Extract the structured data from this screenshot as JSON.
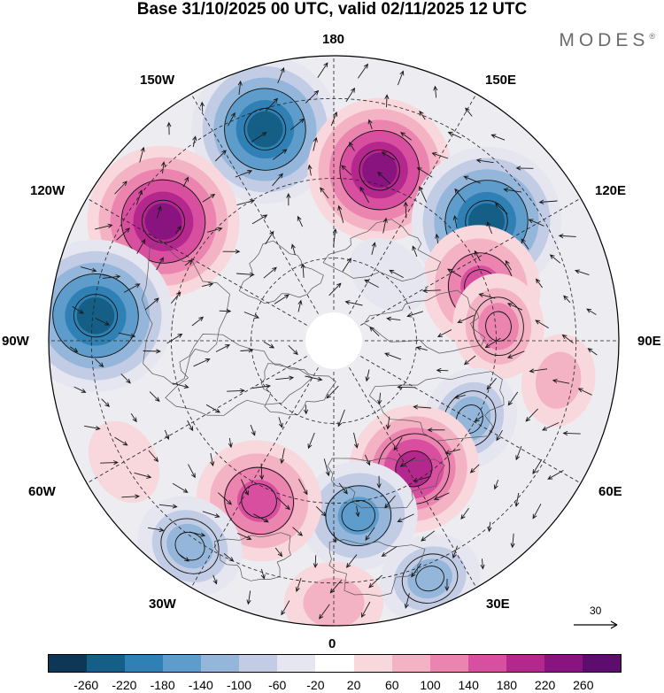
{
  "title": "Base 31/10/2025 00 UTC, valid 02/11/2025 12 UTC",
  "brand": "MODES",
  "brand_mark": "®",
  "longitude_labels": {
    "n180": "180",
    "w150": "150W",
    "e150": "150E",
    "w120": "120W",
    "e120": "120E",
    "w90": "90W",
    "e90": "90E",
    "w60": "60W",
    "e60": "60E",
    "w30": "30W",
    "e30": "30E",
    "zero": "0"
  },
  "vector_reference": {
    "label": "30"
  },
  "colorbar": {
    "colors": [
      "#0d3756",
      "#155f86",
      "#2f80b4",
      "#5e9dcb",
      "#93b6da",
      "#c2cce5",
      "#e6e6f0",
      "#ffffff",
      "#f8d8dc",
      "#f4b3c4",
      "#ec84b0",
      "#d94f9f",
      "#b4278d",
      "#8a147f",
      "#5c0d6e"
    ],
    "ticks": [
      "-260",
      "-220",
      "-180",
      "-140",
      "-100",
      "-60",
      "-20",
      "20",
      "60",
      "100",
      "140",
      "180",
      "220",
      "260"
    ]
  },
  "anomaly_centers": [
    {
      "lon": -162,
      "dist": 0.78,
      "value": -240
    },
    {
      "lon": 165,
      "dist": 0.62,
      "value": 230
    },
    {
      "lon": 128,
      "dist": 0.68,
      "value": -245
    },
    {
      "lon": -125,
      "dist": 0.73,
      "value": 250
    },
    {
      "lon": -96,
      "dist": 0.84,
      "value": -255
    },
    {
      "lon": 110,
      "dist": 0.55,
      "value": 170
    },
    {
      "lon": 95,
      "dist": 0.58,
      "value": 110
    },
    {
      "lon": 80,
      "dist": 0.8,
      "value": 70
    },
    {
      "lon": 60,
      "dist": 0.55,
      "value": -110
    },
    {
      "lon": 32,
      "dist": 0.53,
      "value": 190
    },
    {
      "lon": 8,
      "dist": 0.62,
      "value": -150
    },
    {
      "lon": -25,
      "dist": 0.62,
      "value": 175
    },
    {
      "lon": -35,
      "dist": 0.88,
      "value": -120
    },
    {
      "lon": 22,
      "dist": 0.9,
      "value": -100
    },
    {
      "lon": 0,
      "dist": 0.92,
      "value": 90
    },
    {
      "lon": -60,
      "dist": 0.85,
      "value": 50
    },
    {
      "lon": 140,
      "dist": 0.3,
      "value": -50
    }
  ]
}
